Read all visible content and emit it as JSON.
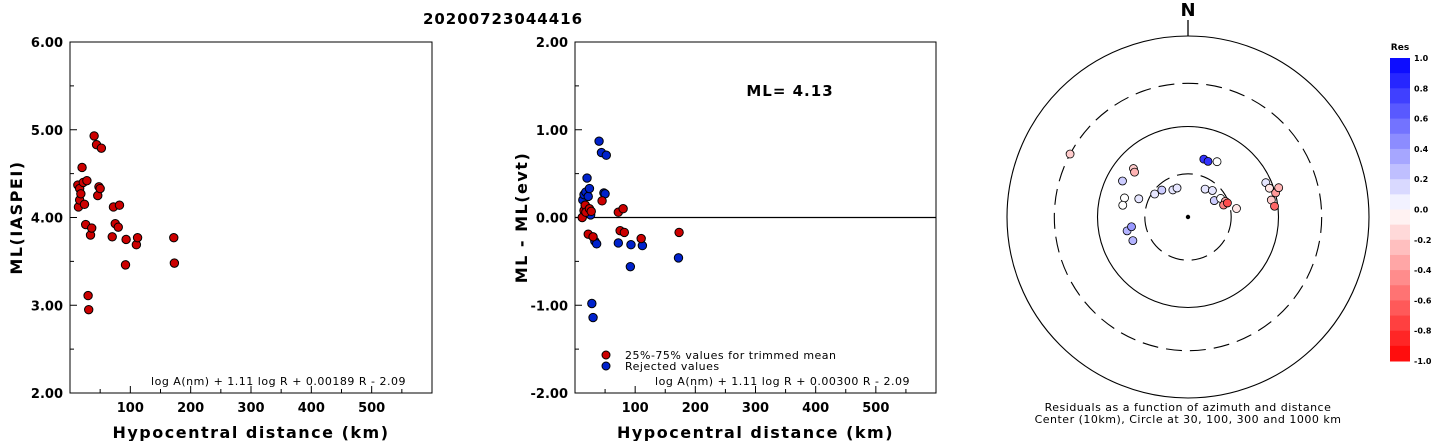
{
  "event_title": "20200723044416",
  "chart_data": [
    {
      "type": "scatter",
      "xlabel": "Hypocentral distance (km)",
      "ylabel": "ML(IASPEI)",
      "xlim": [
        0,
        600
      ],
      "ylim": [
        2.0,
        6.0
      ],
      "xticks": [
        "100",
        "200",
        "300",
        "400",
        "500"
      ],
      "yticks": [
        "2.00",
        "3.00",
        "4.00",
        "5.00",
        "6.00"
      ],
      "formula": "log A(nm) + 1.11 log R + 0.00189 R - 2.09",
      "marker_color": "#cc0000",
      "points": [
        {
          "x": 13,
          "y": 4.37
        },
        {
          "x": 14,
          "y": 4.12
        },
        {
          "x": 16,
          "y": 4.2
        },
        {
          "x": 16,
          "y": 4.33
        },
        {
          "x": 18,
          "y": 4.27
        },
        {
          "x": 20,
          "y": 4.57
        },
        {
          "x": 22,
          "y": 4.4
        },
        {
          "x": 24,
          "y": 4.15
        },
        {
          "x": 26,
          "y": 3.92
        },
        {
          "x": 28,
          "y": 4.42
        },
        {
          "x": 30,
          "y": 3.11
        },
        {
          "x": 31,
          "y": 2.95
        },
        {
          "x": 34,
          "y": 3.8
        },
        {
          "x": 36,
          "y": 3.88
        },
        {
          "x": 40,
          "y": 4.93
        },
        {
          "x": 44,
          "y": 4.83
        },
        {
          "x": 46,
          "y": 4.25
        },
        {
          "x": 48,
          "y": 4.35
        },
        {
          "x": 50,
          "y": 4.33
        },
        {
          "x": 52,
          "y": 4.79
        },
        {
          "x": 70,
          "y": 3.78
        },
        {
          "x": 72,
          "y": 4.12
        },
        {
          "x": 75,
          "y": 3.93
        },
        {
          "x": 80,
          "y": 3.89
        },
        {
          "x": 82,
          "y": 4.14
        },
        {
          "x": 92,
          "y": 3.46
        },
        {
          "x": 93,
          "y": 3.75
        },
        {
          "x": 110,
          "y": 3.69
        },
        {
          "x": 112,
          "y": 3.77
        },
        {
          "x": 172,
          "y": 3.77
        },
        {
          "x": 173,
          "y": 3.48
        }
      ]
    },
    {
      "type": "scatter",
      "xlabel": "Hypocentral distance (km)",
      "ylabel": "ML - ML(evt)",
      "xlim": [
        0,
        600
      ],
      "ylim": [
        -2.0,
        2.0
      ],
      "xticks": [
        "100",
        "200",
        "300",
        "400",
        "500"
      ],
      "yticks": [
        "-2.00",
        "-1.00",
        "0.00",
        "1.00",
        "2.00"
      ],
      "annotation": "ML= 4.13",
      "formula": "log A(nm) + 1.11 log R + 0.00300 R - 2.09",
      "legend": [
        {
          "label": "25%-75% values for trimmed mean",
          "color": "#cc0000"
        },
        {
          "label": "Rejected values",
          "color": "#0022cc"
        }
      ],
      "series": [
        {
          "color": "#cc0000",
          "points": [
            {
              "x": 12,
              "y": 0.0
            },
            {
              "x": 15,
              "y": 0.08
            },
            {
              "x": 17,
              "y": 0.14
            },
            {
              "x": 18,
              "y": 0.06
            },
            {
              "x": 22,
              "y": -0.19
            },
            {
              "x": 24,
              "y": 0.1
            },
            {
              "x": 27,
              "y": 0.07
            },
            {
              "x": 30,
              "y": -0.22
            },
            {
              "x": 45,
              "y": 0.19
            },
            {
              "x": 72,
              "y": 0.06
            },
            {
              "x": 75,
              "y": -0.15
            },
            {
              "x": 80,
              "y": 0.1
            },
            {
              "x": 82,
              "y": -0.17
            },
            {
              "x": 110,
              "y": -0.24
            },
            {
              "x": 173,
              "y": -0.17
            }
          ]
        },
        {
          "color": "#0022cc",
          "points": [
            {
              "x": 13,
              "y": 0.2
            },
            {
              "x": 15,
              "y": 0.26
            },
            {
              "x": 17,
              "y": 0.14
            },
            {
              "x": 18,
              "y": 0.29
            },
            {
              "x": 20,
              "y": 0.45
            },
            {
              "x": 22,
              "y": 0.24
            },
            {
              "x": 24,
              "y": 0.33
            },
            {
              "x": 26,
              "y": 0.03
            },
            {
              "x": 28,
              "y": -0.98
            },
            {
              "x": 30,
              "y": -1.14
            },
            {
              "x": 33,
              "y": -0.27
            },
            {
              "x": 36,
              "y": -0.3
            },
            {
              "x": 40,
              "y": 0.87
            },
            {
              "x": 44,
              "y": 0.74
            },
            {
              "x": 48,
              "y": 0.28
            },
            {
              "x": 50,
              "y": 0.27
            },
            {
              "x": 52,
              "y": 0.71
            },
            {
              "x": 72,
              "y": -0.29
            },
            {
              "x": 92,
              "y": -0.56
            },
            {
              "x": 93,
              "y": -0.31
            },
            {
              "x": 112,
              "y": -0.32
            },
            {
              "x": 172,
              "y": -0.46
            }
          ]
        }
      ]
    },
    {
      "type": "polar-scatter",
      "north_label": "N",
      "caption_line1": "Residuals as a function of azimuth and distance",
      "caption_line2": "Center (10km), Circle at 30, 100, 300 and 1000 km",
      "colorbar_title": "Res",
      "colorbar_ticks": [
        "1.0",
        "0.8",
        "0.6",
        "0.4",
        "0.2",
        "0.0",
        "-0.2",
        "-0.4",
        "-0.6",
        "-0.8",
        "-1.0"
      ],
      "rings_km": [
        30,
        100,
        300,
        1000
      ],
      "stations": [
        {
          "az": -61.9,
          "dist": 300,
          "res": -0.2
        },
        {
          "az": -48.4,
          "dist": 64,
          "res": -0.2
        },
        {
          "az": -50.0,
          "dist": 59,
          "res": -0.3
        },
        {
          "az": -61.2,
          "dist": 67,
          "res": 0.2
        },
        {
          "az": -73.3,
          "dist": 54,
          "res": 0.0
        },
        {
          "az": -79.8,
          "dist": 54,
          "res": 0.0
        },
        {
          "az": -102.8,
          "dist": 49,
          "res": 0.3
        },
        {
          "az": -99.8,
          "dist": 43,
          "res": 0.4
        },
        {
          "az": -113.2,
          "dist": 46,
          "res": 0.3
        },
        {
          "az": -69.7,
          "dist": 38,
          "res": 0.1
        },
        {
          "az": -55.4,
          "dist": 28,
          "res": 0.1
        },
        {
          "az": -44.2,
          "dist": 26,
          "res": 0.2
        },
        {
          "az": -29.2,
          "dist": 22,
          "res": 0.1
        },
        {
          "az": -20.7,
          "dist": 22,
          "res": 0.1
        },
        {
          "az": 15.3,
          "dist": 46,
          "res": 0.8
        },
        {
          "az": 19.8,
          "dist": 45,
          "res": 0.8
        },
        {
          "az": 27.7,
          "dist": 49,
          "res": 0.0
        },
        {
          "az": 31.5,
          "dist": 23,
          "res": 0.1
        },
        {
          "az": 42.6,
          "dist": 25,
          "res": 0.1
        },
        {
          "az": 58.0,
          "dist": 22,
          "res": 0.2
        },
        {
          "az": 60.4,
          "dist": 26,
          "res": 0.0
        },
        {
          "az": 67.3,
          "dist": 28,
          "res": -0.3
        },
        {
          "az": 71.4,
          "dist": 26,
          "res": -0.5
        },
        {
          "az": 70.4,
          "dist": 29,
          "res": -0.7
        },
        {
          "az": 80.1,
          "dist": 35,
          "res": -0.1
        },
        {
          "az": 66.2,
          "dist": 87,
          "res": 0.1
        },
        {
          "az": 70.5,
          "dist": 90,
          "res": -0.1
        },
        {
          "az": 74.6,
          "dist": 101,
          "res": -0.4
        },
        {
          "az": 72.1,
          "dist": 113,
          "res": -0.3
        },
        {
          "az": 78.5,
          "dist": 87,
          "res": -0.2
        },
        {
          "az": 82.9,
          "dist": 92,
          "res": -0.6
        }
      ]
    }
  ]
}
